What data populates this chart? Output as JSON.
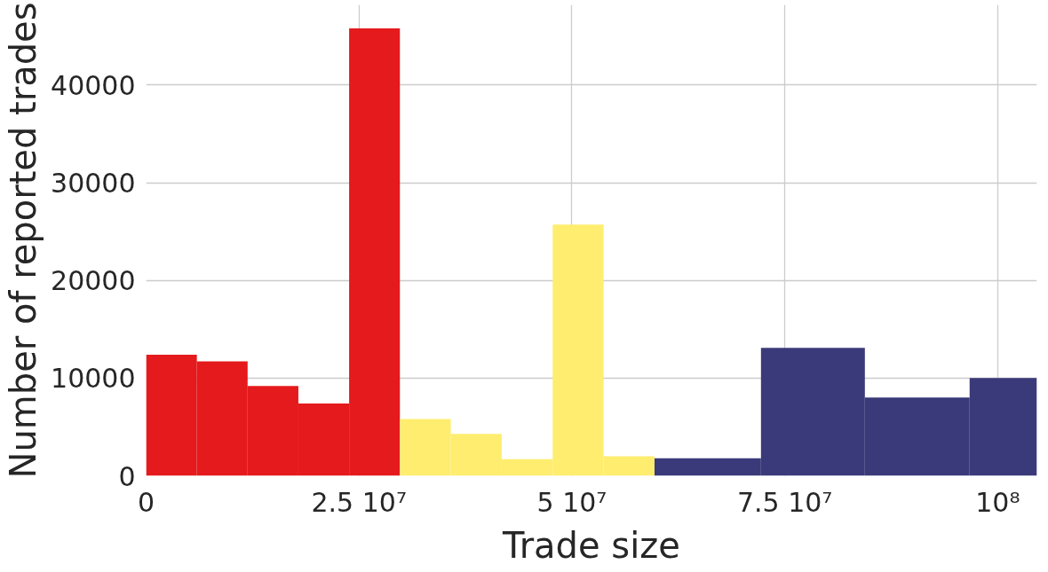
{
  "chart_data": {
    "type": "histogram",
    "xlabel": "Trade size",
    "ylabel": "Number of reported trades",
    "bins": [
      0,
      5960000,
      11920000,
      17880000,
      23840000,
      29800000,
      35780000,
      41760000,
      47740000,
      53720000,
      59700000,
      72200000,
      84400000,
      96700000,
      104600000
    ],
    "values": [
      12400,
      11700,
      9200,
      7400,
      45800,
      5800,
      4300,
      1700,
      25700,
      2000,
      1800,
      13100,
      8000,
      10000
    ],
    "colors": [
      "#e41a1c",
      "#e41a1c",
      "#e41a1c",
      "#e41a1c",
      "#e41a1c",
      "#ffed6f",
      "#ffed6f",
      "#ffed6f",
      "#ffed6f",
      "#ffed6f",
      "#3a3a7a",
      "#3a3a7a",
      "#3a3a7a",
      "#3a3a7a"
    ],
    "xlim": [
      0,
      104600000
    ],
    "ylim": [
      0,
      48200
    ],
    "xticks": [
      0,
      {
        "value": 25000000,
        "label": "2.5 10⁷"
      },
      {
        "value": 50000000,
        "label": "5 10⁷"
      },
      {
        "value": 75000000,
        "label": "7.5 10⁷"
      },
      {
        "value": 100000000,
        "label": "10⁸"
      }
    ],
    "yticks": [
      0,
      10000,
      20000,
      30000,
      40000
    ],
    "grid": true
  }
}
